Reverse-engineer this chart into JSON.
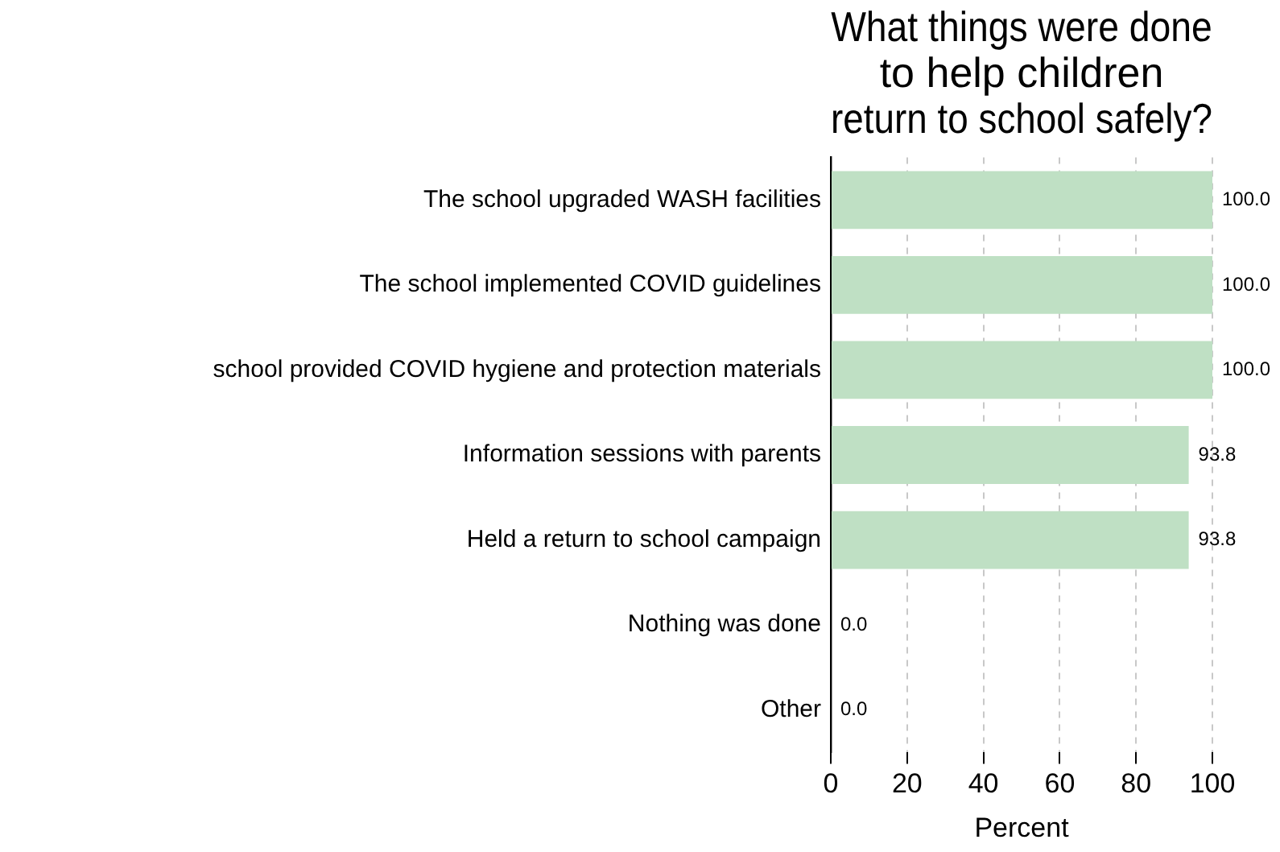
{
  "chart_data": {
    "type": "bar",
    "orientation": "horizontal",
    "title": "What things were done\nto help children\nreturn to school safely?",
    "xlabel": "Percent",
    "categories": [
      "The school upgraded WASH facilities",
      "The school implemented COVID guidelines",
      "school provided COVID hygiene and protection materials",
      "Information sessions with parents",
      "Held a return to school campaign",
      "Nothing was done",
      "Other"
    ],
    "values": [
      100,
      100,
      100,
      93.8,
      93.8,
      0,
      0
    ],
    "value_labels": [
      "100.0",
      "100.0",
      "100.0",
      "93.8",
      "93.8",
      "0.0",
      "0.0"
    ],
    "color": "#bfe0c4",
    "xlim": [
      0,
      100
    ],
    "xticks": [
      0,
      20,
      40,
      60,
      80,
      100
    ],
    "grid": "x"
  }
}
